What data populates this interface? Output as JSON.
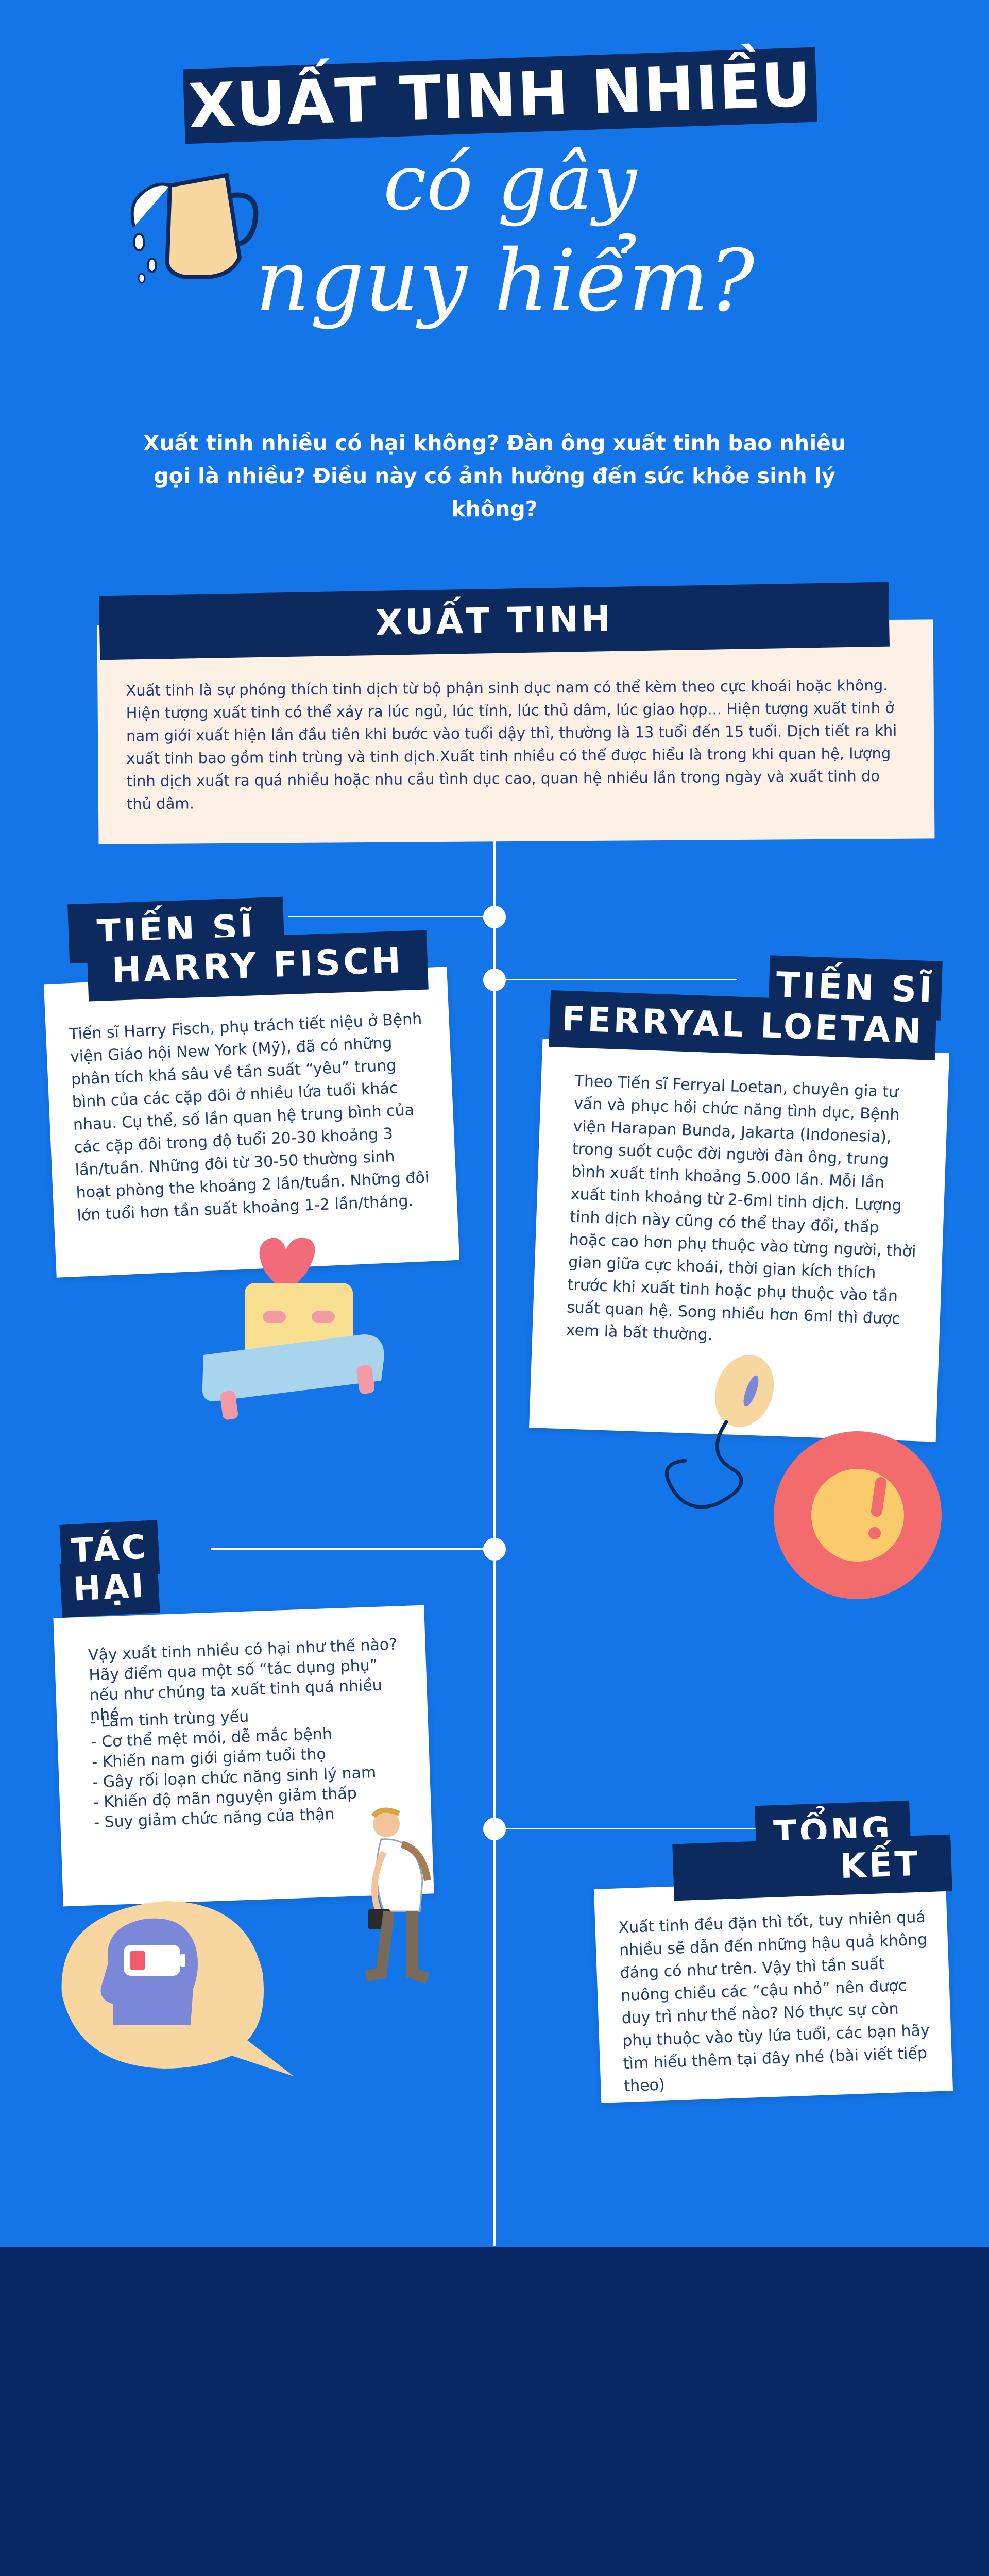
{
  "title": {
    "line1": "XUẤT TINH NHIỀU",
    "line2": "có gây",
    "line3": "nguy hiểm?"
  },
  "subtitle": {
    "line1": "Xuất tinh nhiều có hại không? Đàn ông xuất tinh bao nhiêu",
    "line2": "gọi là nhiều? Điều này có ảnh hưởng đến sức khỏe sinh lý không?"
  },
  "section_xuat_tinh": {
    "heading": "XUẤT TINH",
    "text": "Xuất tinh là sự phóng thích tinh dịch từ bộ phận sinh dục nam có thể kèm theo cực khoái hoặc không. Hiện tượng xuất tinh có thể xảy ra lúc ngủ, lúc tỉnh, lúc thủ dâm, lúc giao hợp... Hiện tượng xuất tinh ở nam giới xuất hiện lần đầu tiên khi bước vào tuổi dậy thì, thường là 13 tuổi đến 15 tuổi. Dịch tiết ra khi xuất tinh bao gồm tinh trùng và tinh dịch.Xuất tinh nhiều có thể được hiểu là trong khi quan hệ, lượng tinh dịch xuất ra quá nhiều hoặc nhu cầu tình dục cao, quan hệ nhiều lần trong ngày và xuất tinh do thủ dâm."
  },
  "harry": {
    "heading_line1": "TIẾN SĨ",
    "heading_line2": "HARRY FISCH",
    "text": "Tiến sĩ Harry Fisch, phụ trách tiết niệu ở Bệnh viện Giáo hội New York (Mỹ), đã có những phân tích khá sâu về tần suất “yêu” trung bình của các cặp đôi ở nhiều lứa tuổi khác nhau. Cụ thể, số lần quan hệ trung bình của các cặp đôi trong độ tuổi 20-30 khoảng 3 lần/tuần. Những đôi từ 30-50 thường sinh hoạt phòng the khoảng 2 lần/tuần. Những đôi lớn tuổi hơn tần suất khoảng 1-2 lần/tháng."
  },
  "ferryal": {
    "heading_line1": "TIẾN SĨ",
    "heading_line2": "FERRYAL LOETAN",
    "text": "Theo Tiến sĩ Ferryal Loetan, chuyên gia tư vấn và phục hồi chức năng tình dục, Bệnh viện Harapan Bunda, Jakarta (Indonesia), trong suốt cuộc đời người đàn ông, trung bình xuất tinh khoảng 5.000 lần. Mỗi lần xuất tinh khoảng từ 2-6ml tinh dịch. Lượng tinh dịch này cũng có thể thay đổi, thấp hoặc cao hơn phụ thuộc vào từng người, thời gian giữa cực khoái, thời gian kích thích trước khi xuất tinh hoặc phụ thuộc vào tần suất quan hệ. Song nhiều hơn 6ml thì được xem là bất thường."
  },
  "tac_hai": {
    "heading_line1": "TÁC",
    "heading_line2": "HẠI",
    "intro": "Vậy xuất tinh nhiều có hại như thế nào? Hãy điểm qua một số “tác dụng phụ” nếu như chúng ta xuất tinh quá nhiều nhé",
    "items": [
      "- Làm tinh trùng yếu",
      "- Cơ thể mệt mỏi, dễ mắc bệnh",
      "- Khiến nam giới giảm tuổi thọ",
      "- Gây rối loạn chức năng sinh lý nam",
      "- Khiến độ mãn nguyện giảm thấp",
      "- Suy giảm chức năng của thận"
    ]
  },
  "tong_ket": {
    "heading_line1": "TỔNG",
    "heading_line2": "KẾT",
    "text": "Xuất tinh đều đặn thì tốt, tuy nhiên quá nhiều sẽ dẫn đến những hậu quả không đáng có như trên. Vậy thì tần suất nuông chiều các “cậu nhỏ” nên được duy trì như thế nào? Nó thực sự còn phụ thuộc vào tùy lứa tuổi, các bạn hãy tìm hiểu thêm tại đây nhé (bài viết tiếp theo)"
  },
  "colors": {
    "background": "#1475e8",
    "navy": "#0c2a5e",
    "cream": "#fdf1e6",
    "text_dark": "#203b7a",
    "footer": "#082863"
  },
  "icons": [
    "milk-jug-icon",
    "heart-bed-icon",
    "sperm-icon",
    "egg-cell-icon",
    "battery-head-icon",
    "tired-man-icon"
  ]
}
